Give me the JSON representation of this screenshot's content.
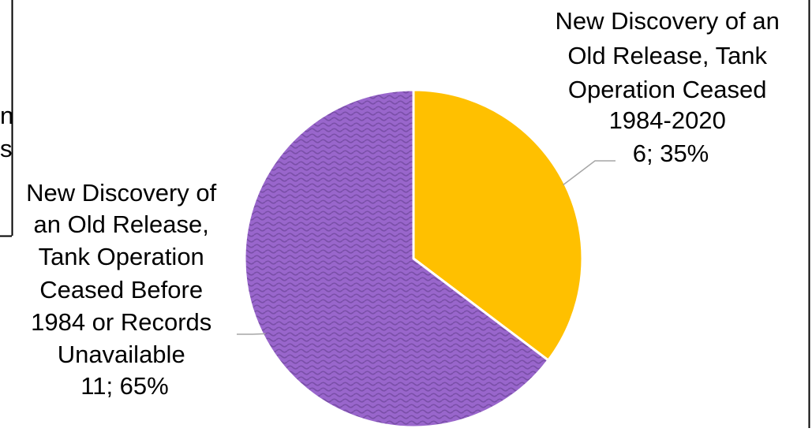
{
  "chart_data": {
    "type": "pie",
    "title": "",
    "slices": [
      {
        "label_lines": [
          "New Discovery of an",
          "Old Release, Tank",
          "Operation Ceased",
          "1984-2020"
        ],
        "value_text": "6; 35%",
        "value": 6,
        "percent": 35,
        "color": "#ffc000",
        "pattern": "solid"
      },
      {
        "label_lines": [
          "New Discovery of",
          "an Old Release,",
          "Tank Operation",
          "Ceased Before",
          "1984 or Records",
          "Unavailable"
        ],
        "value_text": "11; 65%",
        "value": 11,
        "percent": 65,
        "color": "#9966cc",
        "pattern": "wave",
        "pattern_color": "#7a4fa8"
      }
    ],
    "legend": "none",
    "data_labels": "outside with leader lines"
  },
  "clipped_left_text": [
    "n",
    "s"
  ],
  "colors": {
    "frame": "#000000",
    "leader": "#a6a6a6",
    "slice_border": "#ffffff"
  }
}
